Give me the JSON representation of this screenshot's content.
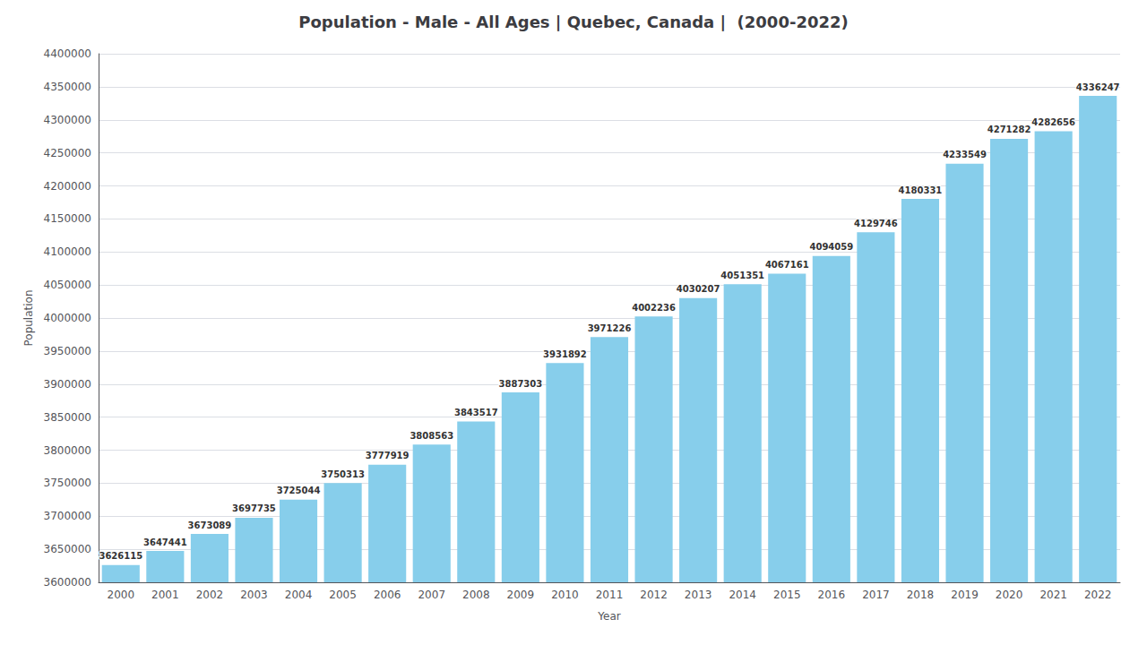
{
  "chart_data": {
    "type": "bar",
    "title": "Population - Male - All Ages | Quebec, Canada |  (2000-2022)",
    "xlabel": "Year",
    "ylabel": "Population",
    "categories": [
      "2000",
      "2001",
      "2002",
      "2003",
      "2004",
      "2005",
      "2006",
      "2007",
      "2008",
      "2009",
      "2010",
      "2011",
      "2012",
      "2013",
      "2014",
      "2015",
      "2016",
      "2017",
      "2018",
      "2019",
      "2020",
      "2021",
      "2022"
    ],
    "values": [
      3626115,
      3647441,
      3673089,
      3697735,
      3725044,
      3750313,
      3777919,
      3808563,
      3843517,
      3887303,
      3931892,
      3971226,
      4002236,
      4030207,
      4051351,
      4067161,
      4094059,
      4129746,
      4180331,
      4233549,
      4271282,
      4282656,
      4336247
    ],
    "color": "#87CEEB",
    "ylim": [
      3600000,
      4400000
    ],
    "yticks": [
      3600000,
      3650000,
      3700000,
      3750000,
      3800000,
      3850000,
      3900000,
      3950000,
      4000000,
      4050000,
      4100000,
      4150000,
      4200000,
      4250000,
      4300000,
      4350000,
      4400000
    ],
    "grid": true,
    "data_labels": true
  }
}
